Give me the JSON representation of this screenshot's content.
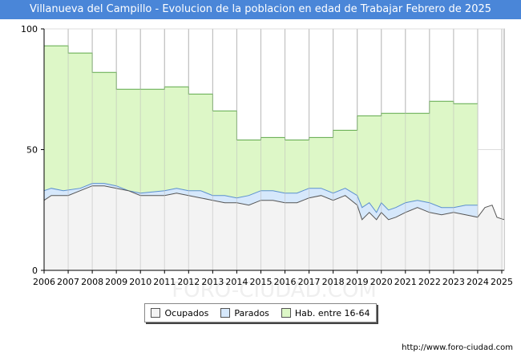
{
  "title": "Villanueva del Campillo - Evolucion de la poblacion en edad de Trabajar Febrero de 2025",
  "source": "http://www.foro-ciudad.com",
  "watermark": "FORO-CIUDAD.COM",
  "colors": {
    "title_bg": "#4a86d8",
    "hab_fill": "#ddf7c7",
    "hab_line": "#5fa84a",
    "parados_fill": "#d6e8fb",
    "parados_line": "#5b8fd0",
    "ocupados_fill": "#f3f3f3",
    "ocupados_line": "#555555",
    "grid": "#bbbbbb"
  },
  "chart_data": {
    "type": "area",
    "xlim": [
      2006,
      2025.1
    ],
    "ylim": [
      0,
      100
    ],
    "y_ticks": [
      "0",
      "50",
      "100"
    ],
    "x_ticks": [
      "2006",
      "2007",
      "2008",
      "2009",
      "2010",
      "2011",
      "2012",
      "2013",
      "2014",
      "2015",
      "2016",
      "2017",
      "2018",
      "2019",
      "2020",
      "2021",
      "2022",
      "2023",
      "2024",
      "2025"
    ],
    "series": [
      {
        "name": "Hab. entre 16-64",
        "key": "hab",
        "points": [
          [
            2006,
            93
          ],
          [
            2007,
            93
          ],
          [
            2007,
            90
          ],
          [
            2008,
            90
          ],
          [
            2008,
            82
          ],
          [
            2009,
            82
          ],
          [
            2009,
            75
          ],
          [
            2011,
            75
          ],
          [
            2011,
            76
          ],
          [
            2012,
            76
          ],
          [
            2012,
            73
          ],
          [
            2013,
            73
          ],
          [
            2013,
            66
          ],
          [
            2014,
            66
          ],
          [
            2014,
            54
          ],
          [
            2015,
            54
          ],
          [
            2015,
            55
          ],
          [
            2016,
            55
          ],
          [
            2016,
            54
          ],
          [
            2017,
            54
          ],
          [
            2017,
            55
          ],
          [
            2018,
            55
          ],
          [
            2018,
            58
          ],
          [
            2019,
            58
          ],
          [
            2019,
            64
          ],
          [
            2020,
            64
          ],
          [
            2020,
            65
          ],
          [
            2022,
            65
          ],
          [
            2022,
            70
          ],
          [
            2023,
            70
          ],
          [
            2023,
            69
          ],
          [
            2024,
            69
          ]
        ]
      },
      {
        "name": "Parados",
        "key": "parados",
        "points": [
          [
            2006,
            33
          ],
          [
            2006.3,
            34
          ],
          [
            2006.8,
            33
          ],
          [
            2007.5,
            34
          ],
          [
            2008,
            36
          ],
          [
            2008.5,
            36
          ],
          [
            2009,
            35
          ],
          [
            2009.5,
            33
          ],
          [
            2010,
            32
          ],
          [
            2011,
            33
          ],
          [
            2011.5,
            34
          ],
          [
            2012,
            33
          ],
          [
            2012.5,
            33
          ],
          [
            2013,
            31
          ],
          [
            2013.5,
            31
          ],
          [
            2014,
            30
          ],
          [
            2014.5,
            31
          ],
          [
            2015,
            33
          ],
          [
            2015.5,
            33
          ],
          [
            2016,
            32
          ],
          [
            2016.5,
            32
          ],
          [
            2017,
            34
          ],
          [
            2017.5,
            34
          ],
          [
            2018,
            32
          ],
          [
            2018.5,
            34
          ],
          [
            2019,
            31
          ],
          [
            2019.2,
            26
          ],
          [
            2019.5,
            28
          ],
          [
            2019.8,
            24
          ],
          [
            2020,
            28
          ],
          [
            2020.3,
            25
          ],
          [
            2020.6,
            26
          ],
          [
            2021,
            28
          ],
          [
            2021.5,
            29
          ],
          [
            2022,
            28
          ],
          [
            2022.5,
            26
          ],
          [
            2023,
            26
          ],
          [
            2023.5,
            27
          ],
          [
            2024,
            27
          ]
        ]
      },
      {
        "name": "Ocupados",
        "key": "ocupados",
        "points": [
          [
            2006,
            29
          ],
          [
            2006.3,
            31
          ],
          [
            2006.7,
            31
          ],
          [
            2007,
            31
          ],
          [
            2007.5,
            33
          ],
          [
            2008,
            35
          ],
          [
            2008.5,
            35
          ],
          [
            2009,
            34
          ],
          [
            2009.5,
            33
          ],
          [
            2010,
            31
          ],
          [
            2011,
            31
          ],
          [
            2011.5,
            32
          ],
          [
            2012,
            31
          ],
          [
            2012.5,
            30
          ],
          [
            2013,
            29
          ],
          [
            2013.5,
            28
          ],
          [
            2014,
            28
          ],
          [
            2014.5,
            27
          ],
          [
            2015,
            29
          ],
          [
            2015.5,
            29
          ],
          [
            2016,
            28
          ],
          [
            2016.5,
            28
          ],
          [
            2017,
            30
          ],
          [
            2017.5,
            31
          ],
          [
            2018,
            29
          ],
          [
            2018.5,
            31
          ],
          [
            2019,
            27
          ],
          [
            2019.2,
            21
          ],
          [
            2019.5,
            24
          ],
          [
            2019.8,
            21
          ],
          [
            2020,
            24
          ],
          [
            2020.3,
            21
          ],
          [
            2020.6,
            22
          ],
          [
            2021,
            24
          ],
          [
            2021.5,
            26
          ],
          [
            2022,
            24
          ],
          [
            2022.5,
            23
          ],
          [
            2023,
            24
          ],
          [
            2023.5,
            23
          ],
          [
            2024,
            22
          ],
          [
            2024.3,
            26
          ],
          [
            2024.6,
            27
          ],
          [
            2024.8,
            22
          ],
          [
            2025.1,
            21
          ]
        ]
      }
    ]
  },
  "legend": {
    "items": [
      {
        "label": "Ocupados",
        "color": "#f3f3f3"
      },
      {
        "label": "Parados",
        "color": "#d6e8fb"
      },
      {
        "label": "Hab. entre 16-64",
        "color": "#ddf7c7"
      }
    ]
  }
}
